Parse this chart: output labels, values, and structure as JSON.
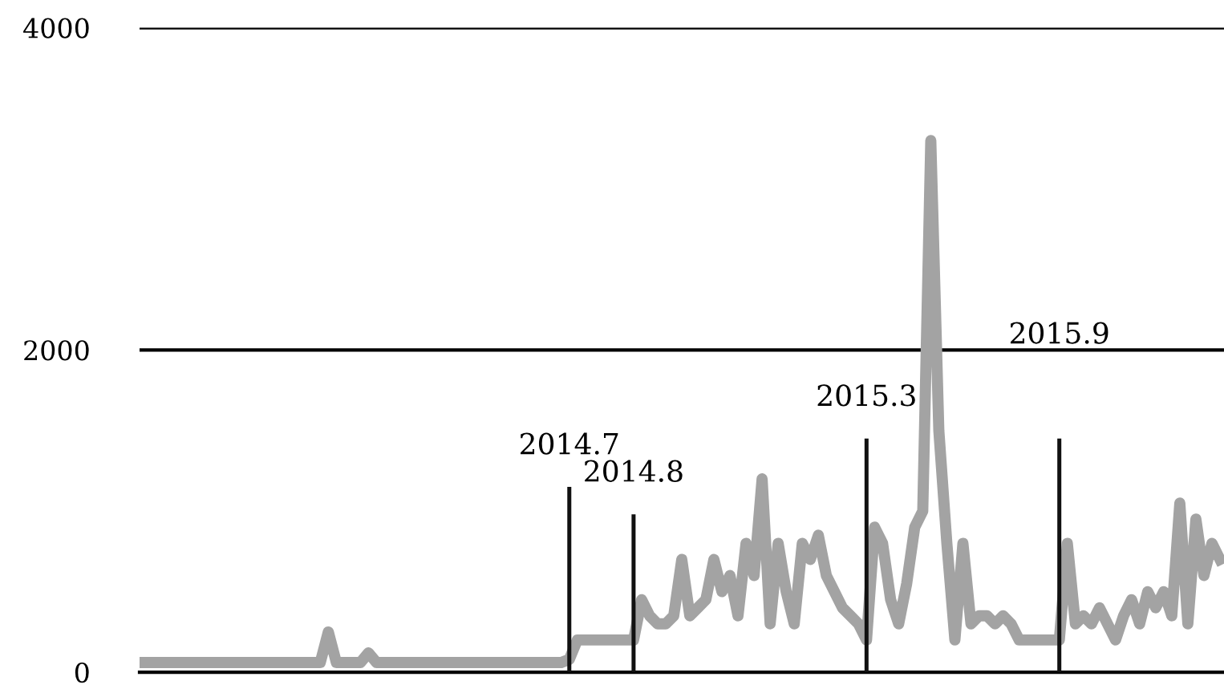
{
  "chart_data": {
    "type": "line",
    "categories": [
      null,
      null,
      null,
      null,
      null,
      null,
      null,
      null,
      null,
      null,
      null,
      null,
      null,
      null,
      null,
      null,
      null,
      null,
      null,
      null,
      null,
      null,
      null,
      null,
      null,
      null,
      null,
      null,
      null,
      null,
      null,
      null,
      null,
      null,
      null,
      null,
      null,
      null,
      null,
      null,
      null,
      null,
      null,
      null,
      null,
      null,
      null,
      null,
      null,
      null,
      null,
      null,
      null,
      null,
      null,
      null,
      null,
      null,
      null,
      null,
      null,
      null,
      null,
      null,
      null,
      null,
      null,
      null,
      null,
      null,
      null,
      null,
      null,
      null,
      null,
      null,
      null,
      null,
      null,
      null,
      null,
      null,
      null,
      null,
      null,
      null,
      null,
      null,
      null,
      null,
      null,
      null,
      null,
      null,
      null,
      null,
      null,
      null,
      null,
      null,
      null,
      null,
      null,
      null,
      null,
      null,
      null,
      null,
      null,
      null,
      null,
      null,
      null,
      null,
      null,
      null,
      null,
      null,
      null,
      null,
      null,
      null,
      null,
      null,
      null,
      null,
      null,
      null,
      null,
      null,
      null,
      null,
      null,
      null,
      null
    ],
    "series": [
      {
        "color": "#a3a3a3",
        "values": [
          60,
          60,
          60,
          60,
          60,
          60,
          60,
          60,
          60,
          60,
          60,
          60,
          60,
          60,
          60,
          60,
          60,
          60,
          60,
          60,
          60,
          60,
          60,
          250,
          60,
          60,
          60,
          60,
          120,
          60,
          60,
          60,
          60,
          60,
          60,
          60,
          60,
          60,
          60,
          60,
          60,
          60,
          60,
          60,
          60,
          60,
          60,
          60,
          60,
          60,
          60,
          60,
          60,
          80,
          200,
          200,
          200,
          200,
          200,
          200,
          200,
          200,
          450,
          350,
          300,
          300,
          350,
          700,
          350,
          400,
          450,
          700,
          500,
          600,
          350,
          800,
          600,
          1200,
          300,
          800,
          500,
          300,
          800,
          700,
          850,
          600,
          500,
          400,
          350,
          300,
          200,
          900,
          800,
          450,
          300,
          550,
          900,
          1000,
          3300,
          1500,
          800,
          200,
          800,
          300,
          350,
          350,
          300,
          350,
          300,
          200,
          200,
          200,
          200,
          200,
          200,
          800,
          300,
          350,
          300,
          400,
          300,
          200,
          350,
          450,
          300,
          500,
          400,
          500,
          350,
          1050,
          300,
          950,
          600,
          800,
          700
        ]
      },
      {
        "type": "bar",
        "color": "#111111",
        "values": [
          null,
          null,
          null,
          null,
          null,
          null,
          null,
          null,
          null,
          null,
          null,
          null,
          null,
          null,
          null,
          null,
          null,
          null,
          null,
          null,
          null,
          null,
          null,
          null,
          null,
          null,
          null,
          null,
          null,
          null,
          null,
          null,
          null,
          null,
          null,
          null,
          null,
          null,
          null,
          null,
          null,
          null,
          null,
          null,
          null,
          null,
          null,
          null,
          null,
          null,
          null,
          null,
          null,
          1150,
          null,
          null,
          null,
          null,
          null,
          null,
          null,
          980,
          null,
          null,
          null,
          null,
          null,
          null,
          null,
          null,
          null,
          null,
          null,
          null,
          null,
          null,
          null,
          null,
          null,
          null,
          null,
          null,
          null,
          null,
          null,
          null,
          null,
          null,
          null,
          null,
          1450,
          null,
          null,
          null,
          null,
          null,
          null,
          null,
          null,
          null,
          null,
          null,
          null,
          null,
          null,
          null,
          null,
          null,
          null,
          null,
          null,
          null,
          null,
          null,
          1450,
          null,
          null,
          null,
          null,
          null,
          null,
          null,
          null,
          null,
          null,
          null,
          null,
          null,
          null,
          null,
          null,
          null,
          null,
          null,
          null
        ]
      }
    ],
    "annotations": [
      "2014.7",
      "2014.8",
      "2015.3",
      "2015.9"
    ],
    "ylim": [
      0,
      4000
    ],
    "yticks": [
      0,
      2000,
      4000
    ],
    "grid": "y",
    "tick_labels": "y"
  }
}
